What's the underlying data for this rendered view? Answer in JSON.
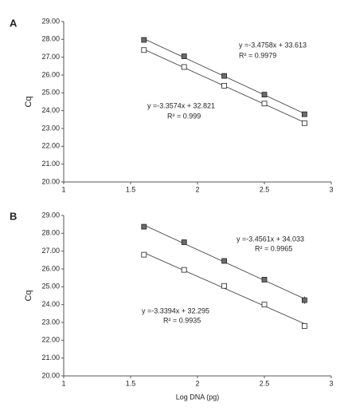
{
  "chart_data": [
    {
      "type": "scatter",
      "panel": "A",
      "ylabel": "Cq",
      "xlim": [
        1,
        3
      ],
      "xticks": [
        1,
        1.5,
        2,
        2.5,
        3
      ],
      "ylim": [
        20,
        29
      ],
      "yticks": [
        {
          "value": 20,
          "label": "20.00"
        },
        {
          "value": 21,
          "label": "21.00"
        },
        {
          "value": 22,
          "label": "22.00"
        },
        {
          "value": 23,
          "label": "23.00"
        },
        {
          "value": 24,
          "label": "24.00"
        },
        {
          "value": 25,
          "label": "25.00"
        },
        {
          "value": 26,
          "label": "26.00"
        },
        {
          "value": 27,
          "label": "27.00"
        },
        {
          "value": 28,
          "label": "28.00"
        },
        {
          "value": 29,
          "label": "29.00"
        }
      ],
      "x": [
        1.6,
        1.9,
        2.2,
        2.5,
        2.8
      ],
      "trendline": true,
      "series": [
        {
          "color": "#6b6b6b",
          "values": [
            27.97,
            27.05,
            25.95,
            24.9,
            23.8
          ]
        },
        {
          "color": "#ffffff",
          "values": [
            27.4,
            26.45,
            25.4,
            24.4,
            23.3
          ]
        }
      ],
      "annotations": [
        "y =-3.4758x + 33.613",
        "R² = 0.9979",
        "y =-3.3574x + 32.821",
        "R² = 0.999"
      ]
    },
    {
      "type": "scatter",
      "panel": "B",
      "ylabel": "Cq",
      "xlabel": "Log DNA (pg)",
      "xlim": [
        1,
        3
      ],
      "xticks": [
        1,
        1.5,
        2,
        2.5,
        3
      ],
      "ylim": [
        20,
        29
      ],
      "yticks": [
        {
          "value": 20,
          "label": "20.00"
        },
        {
          "value": 21,
          "label": "21.00"
        },
        {
          "value": 22,
          "label": "22.00"
        },
        {
          "value": 23,
          "label": "23.00"
        },
        {
          "value": 24,
          "label": "24.00"
        },
        {
          "value": 25,
          "label": "25.00"
        },
        {
          "value": 26,
          "label": "26.00"
        },
        {
          "value": 27,
          "label": "27.00"
        },
        {
          "value": 28,
          "label": "28.00"
        },
        {
          "value": 29,
          "label": "29.00"
        }
      ],
      "x": [
        1.6,
        1.9,
        2.2,
        2.5,
        2.8
      ],
      "trendline": true,
      "series": [
        {
          "color": "#6b6b6b",
          "values": [
            28.37,
            27.5,
            26.45,
            25.4,
            24.25
          ],
          "errors": [
            null,
            null,
            null,
            null,
            0.2
          ]
        },
        {
          "color": "#ffffff",
          "values": [
            26.8,
            25.95,
            25.05,
            24.0,
            22.8
          ]
        }
      ],
      "annotations": [
        "y =-3.4561x + 34.033",
        "R² = 0.9965",
        "y =-3.3394x + 32.295",
        "R² = 0.9935"
      ]
    }
  ]
}
